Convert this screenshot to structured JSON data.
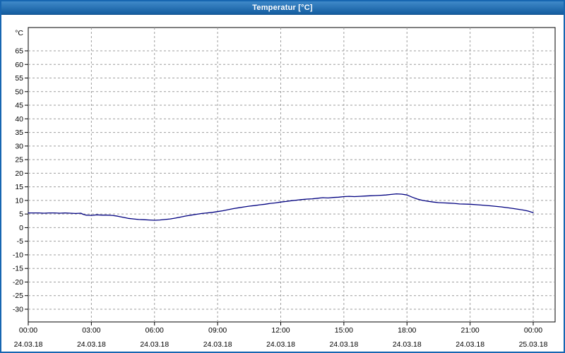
{
  "window": {
    "title": "Temperatur [°C]"
  },
  "colors": {
    "titlebar": "#2a76bb",
    "window_border": "#1766b1",
    "grid": "#9e9e9e",
    "plot_border": "#000000",
    "line": "#000080",
    "background": "#ffffff"
  },
  "chart_data": {
    "type": "line",
    "title": "Temperatur [°C]",
    "xlabel": "",
    "ylabel": "°C",
    "grid": true,
    "legend_position": "none",
    "ylim": [
      -34.5,
      73.5
    ],
    "xlim_hours": [
      0,
      25
    ],
    "y_ticks": [
      65,
      60,
      55,
      50,
      45,
      40,
      35,
      30,
      25,
      20,
      15,
      10,
      5,
      0,
      -5,
      -10,
      -15,
      -20,
      -25,
      -30
    ],
    "x_ticks": [
      {
        "hour": 0,
        "time": "00:00",
        "date": "24.03.18"
      },
      {
        "hour": 3,
        "time": "03:00",
        "date": "24.03.18"
      },
      {
        "hour": 6,
        "time": "06:00",
        "date": "24.03.18"
      },
      {
        "hour": 9,
        "time": "09:00",
        "date": "24.03.18"
      },
      {
        "hour": 12,
        "time": "12:00",
        "date": "24.03.18"
      },
      {
        "hour": 15,
        "time": "15:00",
        "date": "24.03.18"
      },
      {
        "hour": 18,
        "time": "18:00",
        "date": "24.03.18"
      },
      {
        "hour": 21,
        "time": "21:00",
        "date": "24.03.18"
      },
      {
        "hour": 24,
        "time": "00:00",
        "date": "25.03.18"
      }
    ],
    "series": [
      {
        "name": "Temperatur",
        "color": "#000080",
        "points": [
          [
            0,
            5.4
          ],
          [
            0.25,
            5.4
          ],
          [
            0.5,
            5.4
          ],
          [
            0.75,
            5.3
          ],
          [
            1,
            5.4
          ],
          [
            1.25,
            5.4
          ],
          [
            1.5,
            5.3
          ],
          [
            1.75,
            5.4
          ],
          [
            2,
            5.3
          ],
          [
            2.25,
            5.2
          ],
          [
            2.5,
            5.3
          ],
          [
            2.6,
            4.9
          ],
          [
            2.75,
            4.6
          ],
          [
            3,
            4.5
          ],
          [
            3.25,
            4.7
          ],
          [
            3.5,
            4.6
          ],
          [
            3.75,
            4.6
          ],
          [
            4,
            4.5
          ],
          [
            4.25,
            4.2
          ],
          [
            4.5,
            3.8
          ],
          [
            4.75,
            3.4
          ],
          [
            5,
            3.2
          ],
          [
            5.25,
            3.0
          ],
          [
            5.5,
            2.9
          ],
          [
            5.75,
            2.8
          ],
          [
            6,
            2.7
          ],
          [
            6.25,
            2.8
          ],
          [
            6.5,
            3.0
          ],
          [
            6.75,
            3.2
          ],
          [
            7,
            3.5
          ],
          [
            7.25,
            3.9
          ],
          [
            7.5,
            4.3
          ],
          [
            7.75,
            4.6
          ],
          [
            8,
            4.9
          ],
          [
            8.25,
            5.2
          ],
          [
            8.5,
            5.4
          ],
          [
            8.75,
            5.6
          ],
          [
            9,
            5.9
          ],
          [
            9.25,
            6.2
          ],
          [
            9.5,
            6.6
          ],
          [
            9.75,
            7.0
          ],
          [
            10,
            7.3
          ],
          [
            10.25,
            7.6
          ],
          [
            10.5,
            7.9
          ],
          [
            10.75,
            8.1
          ],
          [
            11,
            8.4
          ],
          [
            11.25,
            8.6
          ],
          [
            11.5,
            8.9
          ],
          [
            11.75,
            9.1
          ],
          [
            12,
            9.4
          ],
          [
            12.25,
            9.6
          ],
          [
            12.5,
            9.9
          ],
          [
            12.75,
            10.1
          ],
          [
            13,
            10.3
          ],
          [
            13.25,
            10.5
          ],
          [
            13.5,
            10.6
          ],
          [
            13.75,
            10.8
          ],
          [
            14,
            11.0
          ],
          [
            14.25,
            10.9
          ],
          [
            14.5,
            11.1
          ],
          [
            14.75,
            11.2
          ],
          [
            15,
            11.4
          ],
          [
            15.25,
            11.5
          ],
          [
            15.5,
            11.4
          ],
          [
            15.75,
            11.5
          ],
          [
            16,
            11.6
          ],
          [
            16.25,
            11.7
          ],
          [
            16.5,
            11.8
          ],
          [
            16.75,
            11.9
          ],
          [
            17,
            12.0
          ],
          [
            17.25,
            12.2
          ],
          [
            17.5,
            12.4
          ],
          [
            17.75,
            12.3
          ],
          [
            18,
            12.0
          ],
          [
            18.25,
            11.2
          ],
          [
            18.5,
            10.5
          ],
          [
            18.75,
            10.0
          ],
          [
            19,
            9.7
          ],
          [
            19.25,
            9.4
          ],
          [
            19.5,
            9.2
          ],
          [
            19.75,
            9.1
          ],
          [
            20,
            9.0
          ],
          [
            20.25,
            8.9
          ],
          [
            20.5,
            8.7
          ],
          [
            21,
            8.6
          ],
          [
            21.5,
            8.3
          ],
          [
            22,
            8.0
          ],
          [
            22.5,
            7.6
          ],
          [
            23,
            7.1
          ],
          [
            23.5,
            6.5
          ],
          [
            23.75,
            6.1
          ],
          [
            24,
            5.5
          ]
        ]
      }
    ]
  }
}
